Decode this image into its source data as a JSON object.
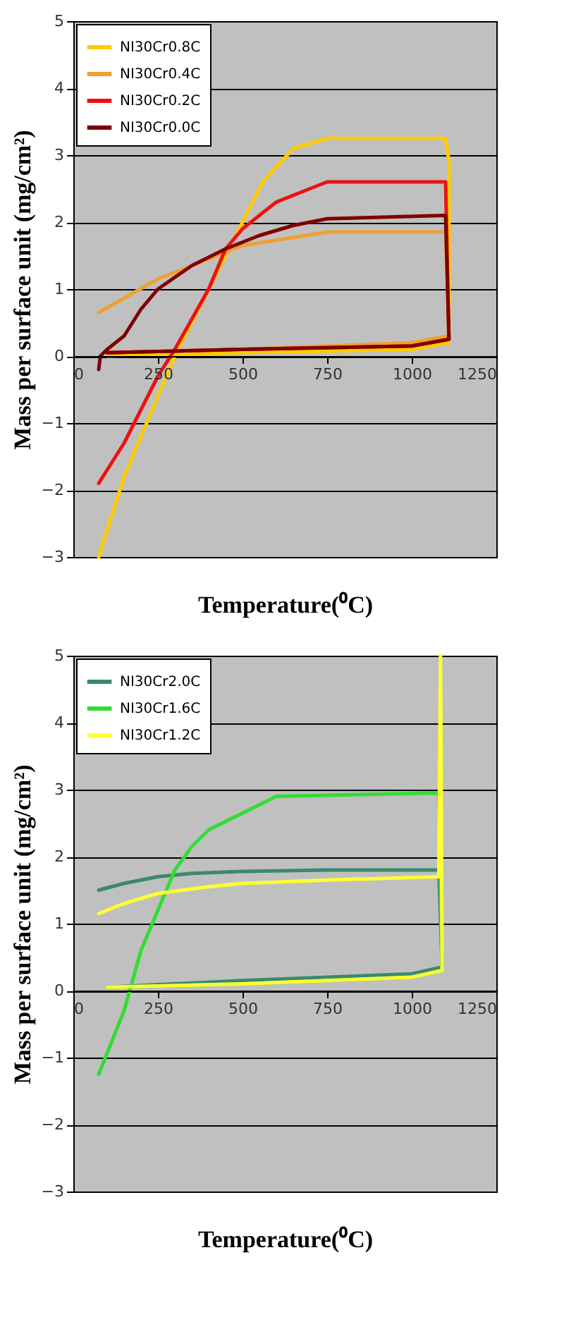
{
  "chart_data": [
    {
      "type": "line",
      "xlabel": "Temperature(⁰C)",
      "ylabel": "Mass per surface unit (mg/cm²)",
      "xlim": [
        0,
        1250
      ],
      "ylim": [
        -3,
        5
      ],
      "xticks": [
        0,
        250,
        500,
        750,
        1000,
        1250
      ],
      "yticks": [
        -3,
        -2,
        -1,
        0,
        1,
        2,
        3,
        4,
        5
      ],
      "grid": "y",
      "legend": "top left",
      "series": [
        {
          "name": "NI30Cr0.8C",
          "color": "#ffcc00",
          "x": [
            75,
            150,
            250,
            300,
            400,
            500,
            560,
            650,
            750,
            1100,
            1110,
            1110,
            1000,
            500,
            100
          ],
          "values": [
            -3,
            -1.8,
            -0.6,
            0,
            1,
            2,
            2.6,
            3.1,
            3.25,
            3.25,
            2.9,
            0.2,
            0.1,
            0.05,
            0
          ]
        },
        {
          "name": "NI30Cr0.4C",
          "color": "#f0a030",
          "x": [
            75,
            250,
            500,
            750,
            1100,
            1110,
            1000,
            500,
            100
          ],
          "values": [
            0.65,
            1.15,
            1.65,
            1.85,
            1.85,
            0.3,
            0.2,
            0.1,
            0.05
          ]
        },
        {
          "name": "NI30Cr0.2C",
          "color": "#ee1111",
          "x": [
            75,
            150,
            250,
            300,
            400,
            450,
            500,
            600,
            700,
            750,
            1100,
            1110,
            1000,
            500,
            100
          ],
          "values": [
            -1.9,
            -1.3,
            -0.3,
            0.1,
            1,
            1.6,
            1.9,
            2.3,
            2.5,
            2.6,
            2.6,
            0.25,
            0.15,
            0.1,
            0.05
          ]
        },
        {
          "name": "NI30Cr0.0C",
          "color": "#800000",
          "x": [
            75,
            80,
            100,
            150,
            200,
            250,
            350,
            450,
            550,
            650,
            750,
            1100,
            1110,
            1000,
            500,
            100
          ],
          "values": [
            -0.2,
            0,
            0.1,
            0.3,
            0.7,
            1,
            1.35,
            1.6,
            1.8,
            1.95,
            2.05,
            2.1,
            0.25,
            0.15,
            0.1,
            0.05
          ]
        }
      ]
    },
    {
      "type": "line",
      "xlabel": "Temperature(⁰C)",
      "ylabel": "Mass per surface unit (mg/cm²)",
      "xlim": [
        0,
        1250
      ],
      "ylim": [
        -3,
        5
      ],
      "xticks": [
        0,
        250,
        500,
        750,
        1000,
        1250
      ],
      "yticks": [
        -3,
        -2,
        -1,
        0,
        1,
        2,
        3,
        4,
        5
      ],
      "grid": "y",
      "legend": "top left",
      "series": [
        {
          "name": "NI30Cr2.0C",
          "color": "#3a8a6a",
          "x": [
            75,
            150,
            250,
            350,
            500,
            750,
            1080,
            1090,
            1000,
            500,
            100
          ],
          "values": [
            1.5,
            1.6,
            1.7,
            1.75,
            1.78,
            1.8,
            1.8,
            0.35,
            0.25,
            0.15,
            0.05
          ]
        },
        {
          "name": "NI30Cr1.6C",
          "color": "#33dd33",
          "x": [
            75,
            150,
            200,
            250,
            300,
            350,
            400,
            500,
            600,
            1080,
            1090,
            1000,
            500,
            100
          ],
          "values": [
            -1.25,
            -0.3,
            0.6,
            1.2,
            1.8,
            2.15,
            2.4,
            2.65,
            2.9,
            2.95,
            0.3,
            0.2,
            0.1,
            0.05
          ]
        },
        {
          "name": "NI30Cr1.2C",
          "color": "#ffff33",
          "x": [
            75,
            150,
            250,
            400,
            500,
            750,
            1080,
            1085,
            1090,
            1000,
            500,
            100
          ],
          "values": [
            1.15,
            1.3,
            1.45,
            1.55,
            1.6,
            1.65,
            1.7,
            5,
            0.3,
            0.2,
            0.1,
            0.05
          ]
        }
      ]
    }
  ]
}
